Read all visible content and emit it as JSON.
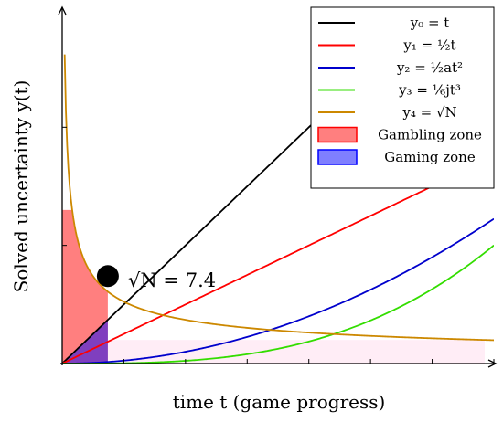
{
  "chart_data": {
    "type": "line",
    "xlabel": "time t (game progress)",
    "ylabel": "Solved uncertainty y(t)",
    "xlim": [
      0,
      3.5
    ],
    "ylim": [
      0,
      3
    ],
    "legend_position": "top-right",
    "grid": false,
    "series": [
      {
        "name": "y₀ = t",
        "formula": "t",
        "color": "#000000",
        "x": [
          0,
          0.5,
          1.0,
          1.5
        ],
        "y": [
          0,
          0.5,
          1.0,
          1.5
        ]
      },
      {
        "name": "y₁ = ½t",
        "formula": "0.5t",
        "color": "#ff0000",
        "x": [
          0,
          1,
          2,
          2.0
        ],
        "y": [
          0,
          0.5,
          1.0,
          1.0
        ]
      },
      {
        "name": "y₂ = ½at²",
        "formula": "0.5·0.2·t²",
        "color": "#0000cc",
        "x": [
          0,
          1,
          2,
          3,
          3.5
        ],
        "y": [
          0,
          0.1,
          0.4,
          0.9,
          1.22
        ]
      },
      {
        "name": "y₃ = ⅙jt³",
        "formula": "(1/6)·0.14·t³",
        "color": "#33dd00",
        "x": [
          0,
          1,
          2,
          3,
          3.5
        ],
        "y": [
          0,
          0.02,
          0.19,
          0.63,
          0.86
        ]
      },
      {
        "name": "y₄ = √N",
        "formula": "0.37/√t",
        "color": "#cc8800",
        "x": [
          0.05,
          0.2,
          0.37,
          1,
          2,
          3.5
        ],
        "y": [
          1.65,
          0.83,
          0.61,
          0.37,
          0.26,
          0.2
        ]
      }
    ],
    "zones": [
      {
        "name": "Gambling zone",
        "color": "#ff0000",
        "fill_opacity": 0.5
      },
      {
        "name": "Gaming zone",
        "color": "#0000ff",
        "fill_opacity": 0.5
      }
    ],
    "marker": {
      "x": 0.37,
      "y": 0.74,
      "label": "√N = 7.4"
    }
  }
}
